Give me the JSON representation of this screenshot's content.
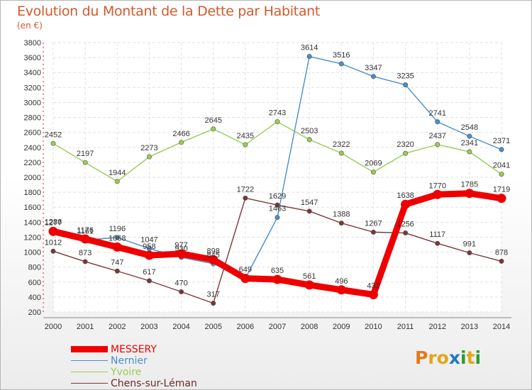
{
  "title": "Evolution du Montant de la Dette par Habitant",
  "unit_label": "(en €)",
  "logo": {
    "letters": [
      "P",
      "r",
      "o",
      "x",
      "i",
      "t",
      "i"
    ],
    "colors": [
      "#e67817",
      "#e6a417",
      "#e6a417",
      "#1f78c8",
      "#2e9c2e",
      "#e6a417",
      "#2e9c2e"
    ]
  },
  "chart_data": {
    "type": "line",
    "x": [
      2000,
      2001,
      2002,
      2003,
      2004,
      2005,
      2006,
      2007,
      2008,
      2009,
      2010,
      2011,
      2012,
      2013,
      2014
    ],
    "ylim": [
      200,
      3800
    ],
    "yticks": [
      200,
      400,
      600,
      800,
      1000,
      1200,
      1400,
      1600,
      1800,
      2000,
      2200,
      2400,
      2600,
      2800,
      3000,
      3200,
      3400,
      3600,
      3800
    ],
    "grid": true,
    "legend_position": "bottom-left",
    "series": [
      {
        "name": "MESSERY",
        "color": "#ee0000",
        "values": [
          1277,
          1176,
          1068,
          958,
          977,
          898,
          649,
          635,
          561,
          496,
          432,
          1638,
          1770,
          1785,
          1719
        ],
        "labels": [
          "1277",
          "1176",
          "1068",
          "958",
          "977",
          "898",
          "649",
          "635",
          "561",
          "496",
          "432",
          "1638",
          "1770",
          "1785",
          "1719"
        ]
      },
      {
        "name": "Nernier",
        "color": "#4b8ec8",
        "values": [
          1286,
          1161,
          1196,
          1047,
          930,
          845,
          649,
          1463,
          3614,
          3516,
          3347,
          3235,
          2741,
          2548,
          2371
        ],
        "labels": [
          "1286",
          "1161",
          "1196",
          "1047",
          "930",
          "845",
          "",
          "1463",
          "3614",
          "3516",
          "3347",
          "3235",
          "2741",
          "2548",
          "2371"
        ]
      },
      {
        "name": "Yvoire",
        "color": "#99cc55",
        "values": [
          2452,
          2197,
          1944,
          2273,
          2466,
          2645,
          2435,
          2743,
          2503,
          2322,
          2069,
          2320,
          2437,
          2341,
          2041
        ],
        "labels": [
          "2452",
          "2197",
          "1944",
          "2273",
          "2466",
          "2645",
          "2435",
          "2743",
          "2503",
          "2322",
          "2069",
          "2320",
          "2437",
          "2341",
          "2041"
        ]
      },
      {
        "name": "Chens-sur-Léman",
        "color": "#7a3737",
        "values": [
          1012,
          873,
          747,
          617,
          470,
          317,
          1722,
          1629,
          1547,
          1388,
          1267,
          1256,
          1117,
          991,
          878
        ],
        "labels": [
          "1012",
          "873",
          "747",
          "617",
          "470",
          "317",
          "1722",
          "1629",
          "1547",
          "1388",
          "1267",
          "1256",
          "1117",
          "991",
          "878"
        ]
      }
    ]
  }
}
